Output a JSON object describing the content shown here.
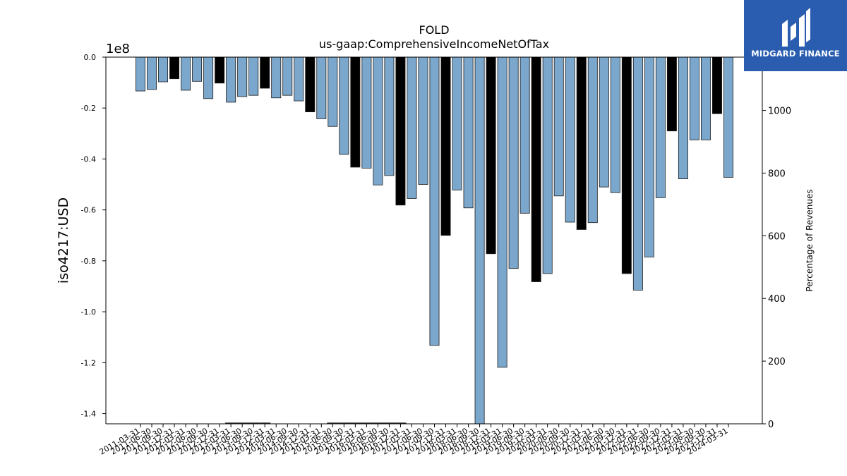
{
  "brand": {
    "name": "MIDGARD FINANCE",
    "icon": "midgard-logo-icon",
    "color": "#2a5db0"
  },
  "chart_data": {
    "type": "bar",
    "title": "FOLD",
    "subtitle": "us-gaap:ComprehensiveIncomeNetOfTax",
    "ylabel": "iso4217:USD",
    "y_offset_label": "1e8",
    "y_scale": 100000000,
    "ylim": [
      -1.44,
      0.0
    ],
    "yticks": [
      0.0,
      -0.2,
      -0.4,
      -0.6,
      -0.8,
      -1.0,
      -1.2,
      -1.4
    ],
    "ytick_labels": [
      "0.0",
      "-0.2",
      "-0.4",
      "-0.6",
      "-0.8",
      "-1.0",
      "-1.2",
      "-1.4"
    ],
    "y2label": "Percentage of Revenues",
    "y2lim": [
      0,
      1170
    ],
    "y2ticks": [
      0,
      200,
      400,
      600,
      800,
      1000
    ],
    "y2tick_labels": [
      "0",
      "200",
      "400",
      "600",
      "800",
      "1000"
    ],
    "colors": {
      "quarter": "#7ca7cc",
      "annual": "#000000",
      "edge": "#1a1a1a"
    },
    "categories": [
      "2011-03-31",
      "2011-06-30",
      "2011-09-30",
      "2011-12-31",
      "2012-03-31",
      "2012-06-30",
      "2012-09-30",
      "2012-12-31",
      "2013-03-31",
      "2013-06-30",
      "2013-09-30",
      "2013-12-31",
      "2014-03-31",
      "2014-06-30",
      "2014-09-30",
      "2014-12-31",
      "2015-03-31",
      "2015-06-30",
      "2015-09-30",
      "2015-12-31",
      "2016-03-31",
      "2016-06-30",
      "2016-09-30",
      "2016-12-31",
      "2017-03-31",
      "2017-06-30",
      "2017-09-30",
      "2017-12-31",
      "2018-03-31",
      "2018-06-30",
      "2018-09-30",
      "2018-12-31",
      "2019-03-31",
      "2019-06-30",
      "2019-09-30",
      "2019-12-31",
      "2020-03-31",
      "2020-06-30",
      "2020-09-30",
      "2020-12-31",
      "2021-03-31",
      "2021-06-30",
      "2021-09-30",
      "2021-12-31",
      "2022-03-31",
      "2022-06-30",
      "2022-09-30",
      "2022-12-31",
      "2023-03-31",
      "2023-06-30",
      "2023-09-30",
      "2023-12-31",
      "2024-03-31"
    ],
    "series": [
      {
        "values": [
          -0.133,
          -0.127,
          -0.097,
          -0.085,
          -0.13,
          -0.095,
          -0.163,
          -0.102,
          -0.177,
          -0.155,
          -0.15,
          -0.122,
          -0.16,
          -0.15,
          -0.172,
          -0.215,
          -0.242,
          -0.272,
          -0.382,
          -0.432,
          -0.436,
          -0.502,
          -0.465,
          -0.581,
          -0.555,
          -0.5,
          -1.132,
          -0.7,
          -0.522,
          -0.592,
          -1.44,
          -0.772,
          -1.218,
          -0.83,
          -0.613,
          -0.882,
          -0.85,
          -0.545,
          -0.648,
          -0.677,
          -0.65,
          -0.51,
          -0.532,
          -0.85,
          -0.915,
          -0.785,
          -0.552,
          -0.29,
          -0.478,
          -0.325,
          -0.325,
          -0.222,
          -0.472
        ],
        "annual": [
          false,
          false,
          false,
          true,
          false,
          false,
          false,
          true,
          false,
          false,
          false,
          true,
          false,
          false,
          false,
          true,
          false,
          false,
          false,
          true,
          false,
          false,
          false,
          true,
          false,
          false,
          false,
          true,
          false,
          false,
          false,
          true,
          false,
          false,
          false,
          true,
          false,
          false,
          false,
          true,
          false,
          false,
          false,
          true,
          false,
          false,
          false,
          true,
          false,
          false,
          false,
          true,
          false
        ]
      },
      {
        "name": "Percentage of Revenues",
        "values": [
          null,
          null,
          null,
          null,
          null,
          null,
          null,
          null,
          0,
          0,
          0,
          0,
          null,
          null,
          null,
          null,
          null,
          0,
          0,
          0,
          0,
          0,
          0,
          0,
          null,
          null,
          null,
          null,
          null,
          null,
          null,
          null,
          null,
          null,
          null,
          null,
          null,
          null,
          null,
          null,
          null,
          null,
          null,
          null,
          null,
          null,
          null,
          null,
          null,
          null,
          null,
          null,
          null
        ]
      }
    ],
    "grid": false,
    "legend": "none"
  }
}
